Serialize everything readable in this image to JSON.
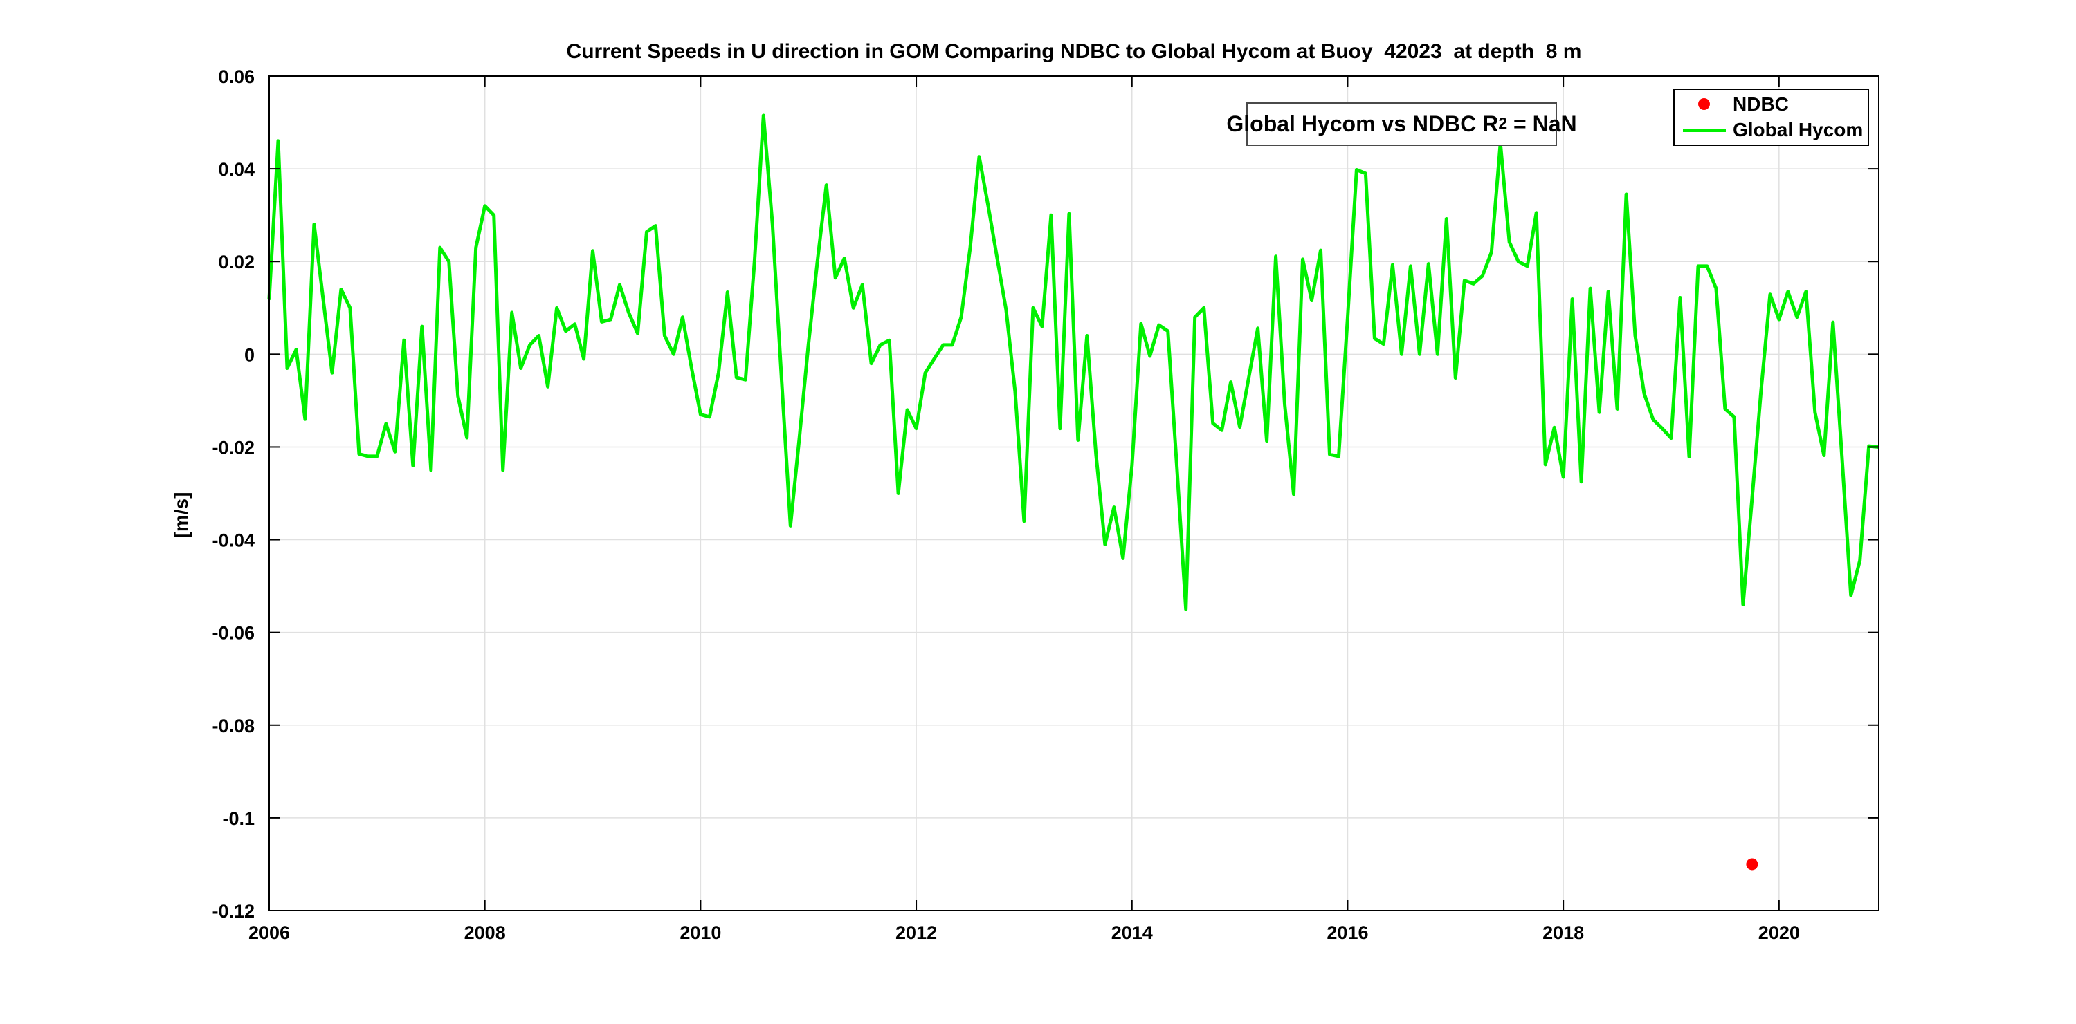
{
  "chart_data": {
    "type": "line+scatter",
    "title": "Current Speeds in U direction in GOM Comparing NDBC to Global Hycom at Buoy  42023  at depth  8 m",
    "xlabel": "",
    "ylabel": "[m/s]",
    "xlim": [
      2006,
      2020.925
    ],
    "ylim": [
      -0.12,
      0.06
    ],
    "grid": true,
    "grid_color": "#e0e0e0",
    "axis_color": "#000000",
    "x_ticks": [
      [
        "2006",
        2006
      ],
      [
        "2008",
        2008
      ],
      [
        "2010",
        2010
      ],
      [
        "2012",
        2012
      ],
      [
        "2014",
        2014
      ],
      [
        "2016",
        2016
      ],
      [
        "2018",
        2018
      ],
      [
        "2020",
        2020
      ]
    ],
    "y_ticks": [
      [
        "0.06",
        0.06
      ],
      [
        "0.04",
        0.04
      ],
      [
        "0.02",
        0.02
      ],
      [
        "0",
        0
      ],
      [
        "-0.02",
        -0.02
      ],
      [
        "-0.04",
        -0.04
      ],
      [
        "-0.06",
        -0.06
      ],
      [
        "-0.08",
        -0.08
      ],
      [
        "-0.1",
        -0.1
      ],
      [
        "-0.12",
        -0.12
      ]
    ],
    "annotation": {
      "prefix": "Global Hycom vs NDBC R",
      "sup": "2",
      "suffix": " = NaN"
    },
    "series": [
      {
        "name": "NDBC",
        "type": "scatter",
        "color": "#ff0000",
        "points": [
          [
            2019.75,
            -0.11
          ]
        ]
      },
      {
        "name": "Global Hycom",
        "type": "line",
        "color": "#00f000",
        "start_year": 2006,
        "interval_months": 1,
        "values": [
          0.012,
          0.046,
          -0.003,
          0.001,
          -0.014,
          0.028,
          0.012,
          -0.004,
          0.014,
          0.01,
          -0.0215,
          -0.022,
          -0.022,
          -0.015,
          -0.021,
          0.003,
          -0.024,
          0.006,
          -0.025,
          0.023,
          0.02,
          -0.009,
          -0.018,
          0.023,
          0.032,
          0.03,
          -0.025,
          0.009,
          -0.003,
          0.002,
          0.004,
          -0.007,
          0.01,
          0.005,
          0.0065,
          -0.001,
          0.0223,
          0.007,
          0.0075,
          0.015,
          0.009,
          0.0045,
          0.0264,
          0.0277,
          0.004,
          0.0,
          0.008,
          -0.003,
          -0.013,
          -0.0135,
          -0.004,
          0.0134,
          -0.005,
          -0.0055,
          0.02,
          0.0515,
          0.028,
          -0.005,
          -0.037,
          -0.018,
          0.002,
          0.02,
          0.0365,
          0.0165,
          0.0207,
          0.01,
          0.015,
          -0.002,
          0.002,
          0.003,
          -0.03,
          -0.012,
          -0.016,
          -0.004,
          -0.001,
          0.002,
          0.002,
          0.008,
          0.023,
          0.0426,
          0.032,
          0.0207,
          0.0096,
          -0.008,
          -0.036,
          0.01,
          0.006,
          0.03,
          -0.016,
          0.0303,
          -0.0185,
          0.004,
          -0.0216,
          -0.041,
          -0.033,
          -0.044,
          -0.024,
          0.0066,
          -0.0004,
          0.0063,
          0.005,
          -0.0244,
          -0.055,
          0.008,
          0.01,
          -0.0149,
          -0.0164,
          -0.006,
          -0.0157,
          -0.005,
          0.0056,
          -0.0187,
          0.0211,
          -0.0108,
          -0.0302,
          0.0205,
          0.0116,
          0.0224,
          -0.0216,
          -0.022,
          0.008,
          0.0398,
          0.039,
          0.0034,
          0.0022,
          0.0193,
          0.0,
          0.019,
          0.0,
          0.0195,
          0.0,
          0.0292,
          -0.0051,
          0.0159,
          0.0152,
          0.0169,
          0.022,
          0.0455,
          0.0242,
          0.02,
          0.019,
          0.0305,
          -0.0238,
          -0.0158,
          -0.0265,
          0.0119,
          -0.0275,
          0.0142,
          -0.0125,
          0.0135,
          -0.0118,
          0.0345,
          0.004,
          -0.0085,
          -0.0141,
          -0.016,
          -0.0181,
          0.0122,
          -0.0221,
          0.019,
          0.019,
          0.0142,
          -0.0118,
          -0.0135,
          -0.054,
          -0.0311,
          -0.0078,
          0.0129,
          0.0075,
          0.0135,
          0.008,
          0.0135,
          -0.0125,
          -0.0218,
          0.0069,
          -0.0221,
          -0.052,
          -0.0445,
          -0.0198,
          -0.02
        ]
      }
    ]
  }
}
